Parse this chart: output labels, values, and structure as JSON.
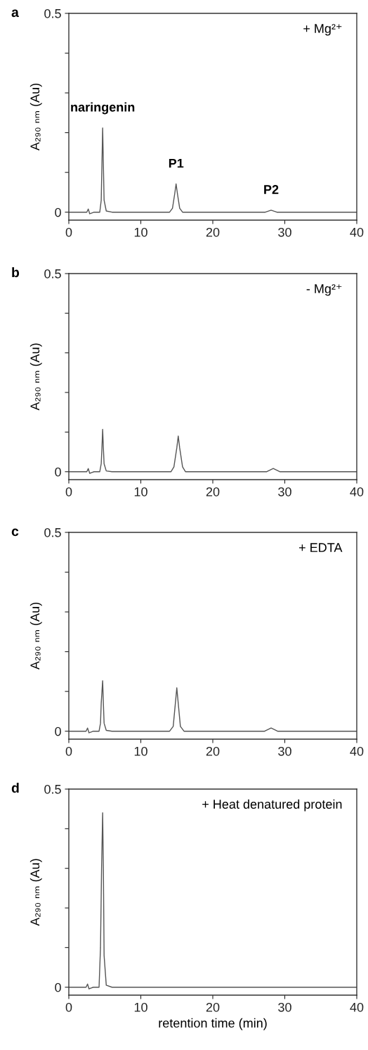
{
  "chart_data": [
    {
      "type": "line",
      "title": "a",
      "ylabel": "A₂₉₀ ₙₘ (Au)",
      "xlim": [
        0,
        40
      ],
      "ylim": [
        -0.02,
        0.5
      ],
      "xticks": [
        0,
        10,
        20,
        30,
        40
      ],
      "yticks": [
        0,
        {
          "value": 0.1,
          "label": null
        },
        {
          "value": 0.2,
          "label": null
        },
        {
          "value": 0.3,
          "label": null
        },
        {
          "value": 0.4,
          "label": null
        },
        0.5
      ],
      "grid": false,
      "legend": false,
      "series": [
        {
          "color": "#555555",
          "x": [
            0,
            2.5,
            2.7,
            2.9,
            3.2,
            3.5,
            4.3,
            4.5,
            4.6,
            4.7,
            4.8,
            4.9,
            5.2,
            6,
            14.0,
            14.4,
            14.7,
            14.9,
            15.1,
            15.4,
            15.8,
            27.3,
            28.1,
            28.9,
            40
          ],
          "values": [
            0,
            0,
            0.008,
            -0.004,
            -0.002,
            0,
            0,
            0.03,
            0.12,
            0.212,
            0.12,
            0.03,
            0.003,
            0,
            0,
            0.01,
            0.045,
            0.071,
            0.045,
            0.01,
            0,
            0,
            0.005,
            0,
            0
          ]
        }
      ],
      "annotations": [
        "+ Mg²⁺",
        {
          "text": "naringenin",
          "x": 4.7,
          "y": 0.212
        },
        {
          "text": "P1",
          "x": 14.9,
          "y": 0.071
        },
        {
          "text": "P2",
          "x": 28.1,
          "y": 0.005
        }
      ]
    },
    {
      "type": "line",
      "title": "b",
      "ylabel": "A₂₉₀ ₙₘ (Au)",
      "xlim": [
        0,
        40
      ],
      "ylim": [
        -0.02,
        0.5
      ],
      "xticks": [
        0,
        10,
        20,
        30,
        40
      ],
      "yticks": [
        0,
        {
          "value": 0.1,
          "label": null
        },
        {
          "value": 0.2,
          "label": null
        },
        {
          "value": 0.3,
          "label": null
        },
        {
          "value": 0.4,
          "label": null
        },
        0.5
      ],
      "grid": false,
      "legend": false,
      "series": [
        {
          "color": "#555555",
          "x": [
            0,
            2.5,
            2.7,
            2.9,
            3.2,
            3.5,
            4.3,
            4.5,
            4.6,
            4.7,
            4.8,
            4.9,
            5.2,
            6,
            14.2,
            14.6,
            15.0,
            15.2,
            15.4,
            15.8,
            16.2,
            27.5,
            28.4,
            29.3,
            40
          ],
          "values": [
            0,
            0,
            0.008,
            -0.004,
            -0.002,
            0,
            0,
            0.02,
            0.06,
            0.107,
            0.06,
            0.02,
            0.002,
            0,
            0,
            0.012,
            0.06,
            0.09,
            0.06,
            0.012,
            0,
            0,
            0.008,
            0,
            0
          ]
        }
      ],
      "annotations": [
        "- Mg²⁺"
      ]
    },
    {
      "type": "line",
      "title": "c",
      "ylabel": "A₂₉₀ ₙₘ (Au)",
      "xlim": [
        0,
        40
      ],
      "ylim": [
        -0.02,
        0.5
      ],
      "xticks": [
        0,
        10,
        20,
        30,
        40
      ],
      "yticks": [
        0,
        {
          "value": 0.1,
          "label": null
        },
        {
          "value": 0.2,
          "label": null
        },
        {
          "value": 0.3,
          "label": null
        },
        {
          "value": 0.4,
          "label": null
        },
        0.5
      ],
      "grid": false,
      "legend": false,
      "series": [
        {
          "color": "#555555",
          "x": [
            0,
            2.4,
            2.6,
            2.8,
            3.1,
            3.4,
            4.2,
            4.4,
            4.5,
            4.7,
            4.8,
            4.9,
            5.2,
            6,
            14.0,
            14.5,
            14.8,
            15.0,
            15.2,
            15.5,
            16.0,
            27.2,
            28.1,
            29.0,
            40
          ],
          "values": [
            0,
            0,
            0.008,
            -0.004,
            -0.002,
            0,
            0,
            0.02,
            0.07,
            0.127,
            0.07,
            0.02,
            0.002,
            0,
            0,
            0.012,
            0.07,
            0.109,
            0.07,
            0.012,
            0,
            0,
            0.008,
            0,
            0
          ]
        }
      ],
      "annotations": [
        "+ EDTA"
      ]
    },
    {
      "type": "line",
      "title": "d",
      "ylabel": "A₂₉₀ ₙₘ (Au)",
      "xlabel": "retention time (min)",
      "xlim": [
        0,
        40
      ],
      "ylim": [
        -0.02,
        0.5
      ],
      "xticks": [
        0,
        10,
        20,
        30,
        40
      ],
      "yticks": [
        0,
        {
          "value": 0.1,
          "label": null
        },
        {
          "value": 0.2,
          "label": null
        },
        {
          "value": 0.3,
          "label": null
        },
        {
          "value": 0.4,
          "label": null
        },
        0.5
      ],
      "grid": false,
      "legend": false,
      "series": [
        {
          "color": "#555555",
          "x": [
            0,
            2.4,
            2.6,
            2.8,
            3.1,
            3.4,
            4.2,
            4.4,
            4.55,
            4.7,
            4.8,
            4.9,
            5.2,
            6,
            40
          ],
          "values": [
            0,
            0,
            0.008,
            -0.004,
            -0.002,
            0,
            0,
            0.1,
            0.3,
            0.44,
            0.3,
            0.08,
            0.005,
            0,
            0
          ]
        }
      ],
      "annotations": [
        "+ Heat denatured protein"
      ]
    }
  ]
}
